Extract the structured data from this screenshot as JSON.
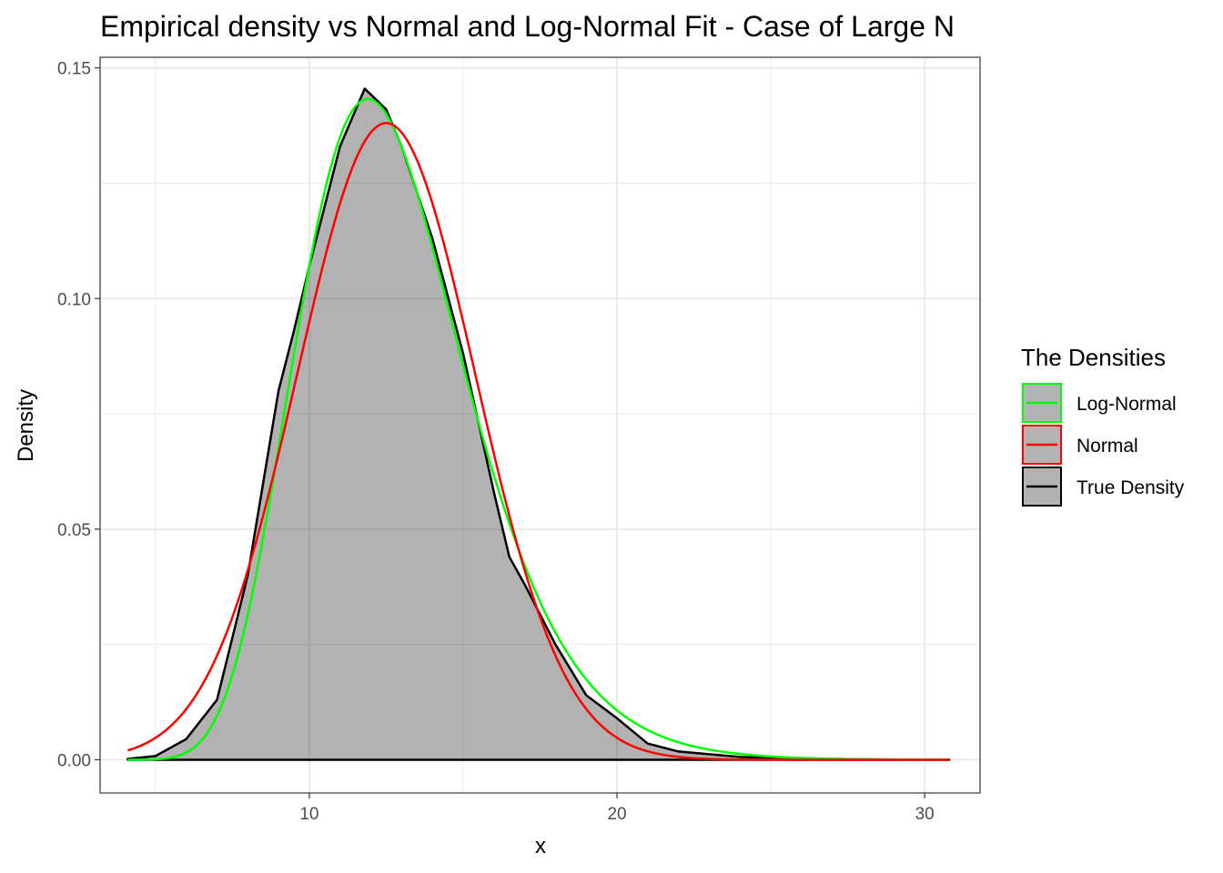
{
  "chart_data": {
    "type": "line",
    "title": "Empirical density vs Normal and Log-Normal Fit - Case of Large N",
    "xlabel": "x",
    "ylabel": "Density",
    "xlim": [
      3.2,
      31.8
    ],
    "ylim": [
      -0.0072,
      0.1523
    ],
    "x_ticks": [
      10,
      20,
      30
    ],
    "x_tick_labels": [
      "10",
      "20",
      "30"
    ],
    "y_ticks": [
      0,
      0.05,
      0.1,
      0.15
    ],
    "y_tick_labels": [
      "0.00",
      "0.05",
      "0.10",
      "0.15"
    ],
    "grid": true,
    "legend": {
      "title": "The Densities",
      "placement": "right",
      "entries": [
        "Log-Normal",
        "Normal",
        "True Density"
      ]
    },
    "colors": {
      "Log-Normal": "#00ff00",
      "Normal": "#ff0000",
      "True Density": "#000000",
      "fill": "#b3b3b3"
    },
    "series": [
      {
        "name": "True Density",
        "type": "area",
        "x": [
          4.1,
          5,
          6,
          7,
          8,
          9,
          9.5,
          10,
          11,
          11.8,
          12.5,
          13,
          14,
          15,
          16,
          16.5,
          17,
          18,
          19,
          20,
          21,
          22,
          24,
          27,
          30.8
        ],
        "y": [
          0.0002,
          0.0008,
          0.0045,
          0.013,
          0.04,
          0.08,
          0.093,
          0.107,
          0.133,
          0.1455,
          0.141,
          0.133,
          0.113,
          0.088,
          0.058,
          0.044,
          0.038,
          0.025,
          0.014,
          0.009,
          0.0035,
          0.0018,
          0.0006,
          0.0001,
          0.0
        ]
      },
      {
        "name": "Normal",
        "distribution": "normal",
        "mean": 12.5,
        "sd": 2.89,
        "x_range": [
          4.1,
          30.8
        ]
      },
      {
        "name": "Log-Normal",
        "distribution": "lognormal",
        "meanlog": 2.5285,
        "sdlog": 0.228,
        "x_range": [
          4.1,
          30.8
        ]
      }
    ]
  }
}
